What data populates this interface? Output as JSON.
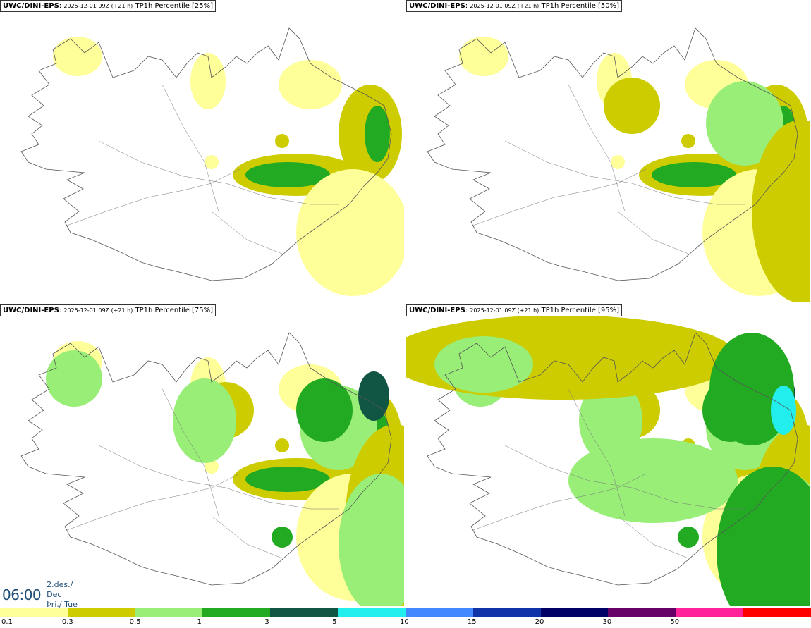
{
  "panels": [
    {
      "model": "UWC/DINI-EPS",
      "run": "2025-12-01 09Z (+21 h)",
      "product": "TP1h Percentile [25%]",
      "level": 0
    },
    {
      "model": "UWC/DINI-EPS",
      "run": "2025-12-01 09Z (+21 h)",
      "product": "TP1h Percentile [50%]",
      "level": 1
    },
    {
      "model": "UWC/DINI-EPS",
      "run": "2025-12-01 09Z (+21 h)",
      "product": "TP1h Percentile [75%]",
      "level": 2
    },
    {
      "model": "UWC/DINI-EPS",
      "run": "2025-12-01 09Z (+21 h)",
      "product": "TP1h Percentile [95%]",
      "level": 3
    }
  ],
  "valid_time": {
    "time": "06:00",
    "date_line1": "2.des./ Dec",
    "date_line2": "Þri./ Tue"
  },
  "legend": {
    "colors": [
      "#ffff99",
      "#cccc00",
      "#99ee77",
      "#22aa22",
      "#115544",
      "#22eeee",
      "#4488ff",
      "#1133aa",
      "#000066",
      "#660066",
      "#ff2299",
      "#ff0000"
    ],
    "ticks": [
      "0.1",
      "0.3",
      "0.5",
      "1",
      "3",
      "5",
      "10",
      "15",
      "20",
      "30",
      "50"
    ]
  }
}
